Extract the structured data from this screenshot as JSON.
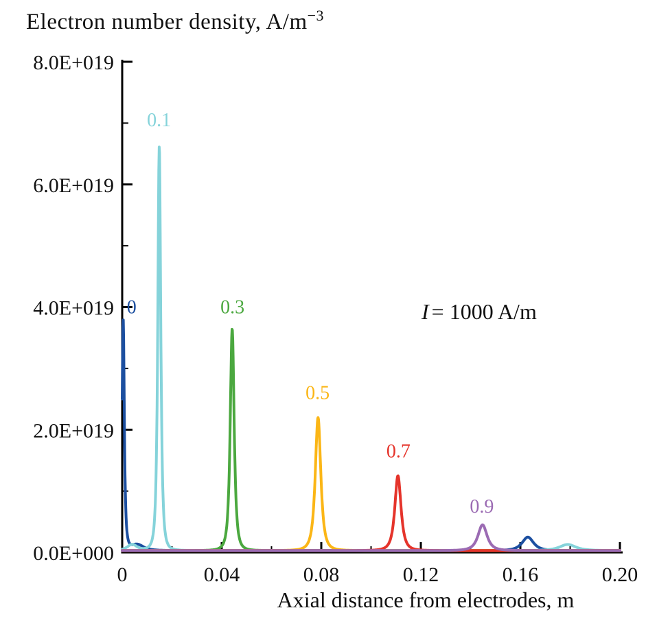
{
  "chart_data": {
    "type": "line",
    "ylabel_main": "Electron number density, A/m",
    "ylabel_exponent": "−3",
    "xlabel": "Axial distance from electrodes, m",
    "annotation_italic": "I",
    "annotation_rest": "= 1000 A/m",
    "grid": false,
    "x_axis": {
      "min": 0,
      "max": 0.2,
      "minor_step": 0.02,
      "ticks": [
        {
          "value": 0,
          "label": "0"
        },
        {
          "value": 0.04,
          "label": "0.04"
        },
        {
          "value": 0.08,
          "label": "0.08"
        },
        {
          "value": 0.12,
          "label": "0.12"
        },
        {
          "value": 0.16,
          "label": "0.16"
        },
        {
          "value": 0.2,
          "label": "0.20"
        }
      ]
    },
    "y_axis": {
      "min": 0,
      "max": 8e+19,
      "minor_step": 1e+19,
      "ticks": [
        {
          "value": 0,
          "label": "0.0E+000"
        },
        {
          "value": 2e+19,
          "label": "2.0E+019"
        },
        {
          "value": 4e+19,
          "label": "4.0E+019"
        },
        {
          "value": 6e+19,
          "label": "6.0E+019"
        },
        {
          "value": 8e+19,
          "label": "8.0E+019"
        }
      ]
    },
    "series": [
      {
        "name": "0",
        "color": "#1c4fa0",
        "baseline": 3e+17,
        "peaks": [
          {
            "center": 0.0004,
            "height": 3.75e+19,
            "width": 0.0007
          },
          {
            "center": 0.006,
            "height": 1e+18,
            "width": 0.004
          },
          {
            "center": 0.163,
            "height": 2.2e+18,
            "width": 0.0035
          }
        ],
        "label": {
          "text": "0",
          "x": 0.0038,
          "y": 3.9e+19
        }
      },
      {
        "name": "0.1",
        "color": "#85d3da",
        "baseline": 3e+17,
        "peaks": [
          {
            "center": 0.0149,
            "height": 6.6e+19,
            "width": 0.0009
          },
          {
            "center": 0.004,
            "height": 1e+18,
            "width": 0.003
          },
          {
            "center": 0.179,
            "height": 1e+18,
            "width": 0.005
          }
        ],
        "label": {
          "text": "0.1",
          "x": 0.0148,
          "y": 6.95e+19
        }
      },
      {
        "name": "0.3",
        "color": "#4ba83f",
        "baseline": 3e+17,
        "peaks": [
          {
            "center": 0.0442,
            "height": 3.62e+19,
            "width": 0.0012
          }
        ],
        "label": {
          "text": "0.3",
          "x": 0.0443,
          "y": 3.9e+19
        }
      },
      {
        "name": "0.5",
        "color": "#fbb616",
        "baseline": 3e+17,
        "peaks": [
          {
            "center": 0.0787,
            "height": 2.17e+19,
            "width": 0.0017
          }
        ],
        "label": {
          "text": "0.5",
          "x": 0.0785,
          "y": 2.5e+19
        }
      },
      {
        "name": "0.7",
        "color": "#e5342b",
        "baseline": 3e+17,
        "peaks": [
          {
            "center": 0.1108,
            "height": 1.22e+19,
            "width": 0.0019
          }
        ],
        "label": {
          "text": "0.7",
          "x": 0.111,
          "y": 1.55e+19
        }
      },
      {
        "name": "0.9",
        "color": "#9b6bb3",
        "baseline": 3e+17,
        "peaks": [
          {
            "center": 0.1448,
            "height": 4.2e+18,
            "width": 0.0028
          }
        ],
        "label": {
          "text": "0.9",
          "x": 0.1445,
          "y": 6.5e+18
        }
      }
    ]
  }
}
